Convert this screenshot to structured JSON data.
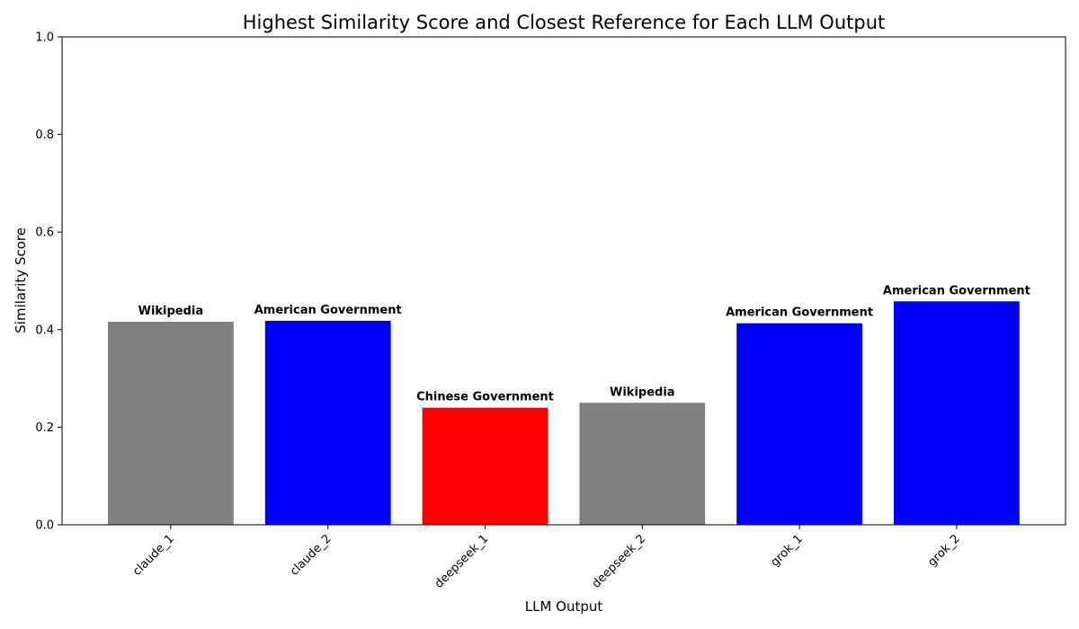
{
  "chart_data": {
    "type": "bar",
    "title": "Highest Similarity Score and Closest Reference for Each LLM Output",
    "xlabel": "LLM Output",
    "ylabel": "Similarity Score",
    "ylim": [
      0,
      1
    ],
    "yticks": [
      "0.0",
      "0.2",
      "0.4",
      "0.6",
      "0.8",
      "1.0"
    ],
    "grid": false,
    "categories": [
      "claude_1",
      "claude_2",
      "deepseek_1",
      "deepseek_2",
      "grok_1",
      "grok_2"
    ],
    "values": [
      0.416,
      0.418,
      0.24,
      0.25,
      0.413,
      0.458
    ],
    "bar_labels": [
      "Wikipedia",
      "American Government",
      "Chinese Government",
      "Wikipedia",
      "American Government",
      "American Government"
    ],
    "bar_colors": [
      "#808080",
      "#0000ff",
      "#ff0000",
      "#808080",
      "#0000ff",
      "#0000ff"
    ]
  }
}
